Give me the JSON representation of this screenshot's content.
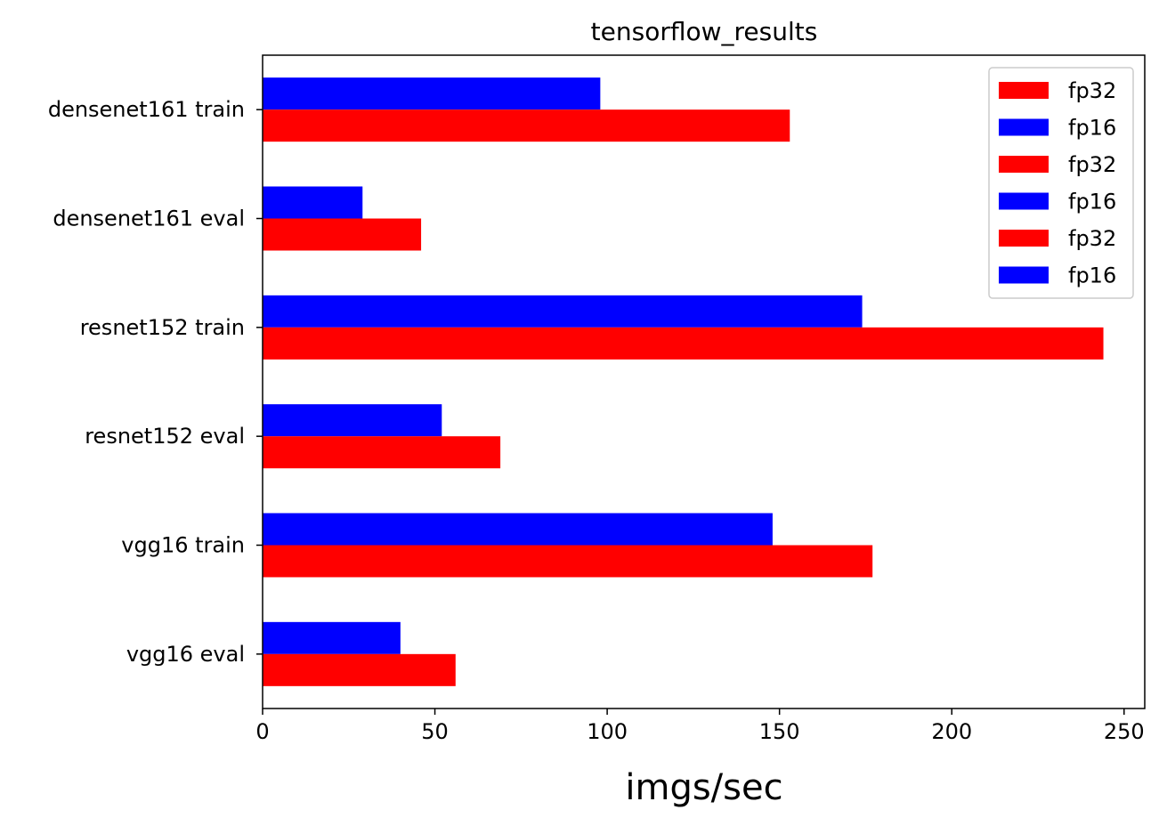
{
  "chart_data": {
    "type": "bar",
    "orientation": "horizontal",
    "title": "tensorflow_results",
    "xlabel": "imgs/sec",
    "ylabel": "",
    "categories": [
      "densenet161 train",
      "densenet161 eval",
      "resnet152 train",
      "resnet152 eval",
      "vgg16 train",
      "vgg16 eval"
    ],
    "series": [
      {
        "name": "fp16",
        "color": "#0000ff",
        "values": [
          98,
          29,
          174,
          52,
          148,
          40
        ]
      },
      {
        "name": "fp32",
        "color": "#ff0000",
        "values": [
          153,
          46,
          244,
          69,
          177,
          56
        ]
      }
    ],
    "xlim": [
      0,
      256
    ],
    "xticks": [
      0,
      50,
      100,
      150,
      200,
      250
    ],
    "grid": false,
    "legend": {
      "position": "top-right",
      "entries": [
        {
          "label": "fp32",
          "color": "#ff0000"
        },
        {
          "label": "fp16",
          "color": "#0000ff"
        },
        {
          "label": "fp32",
          "color": "#ff0000"
        },
        {
          "label": "fp16",
          "color": "#0000ff"
        },
        {
          "label": "fp32",
          "color": "#ff0000"
        },
        {
          "label": "fp16",
          "color": "#0000ff"
        }
      ]
    }
  }
}
